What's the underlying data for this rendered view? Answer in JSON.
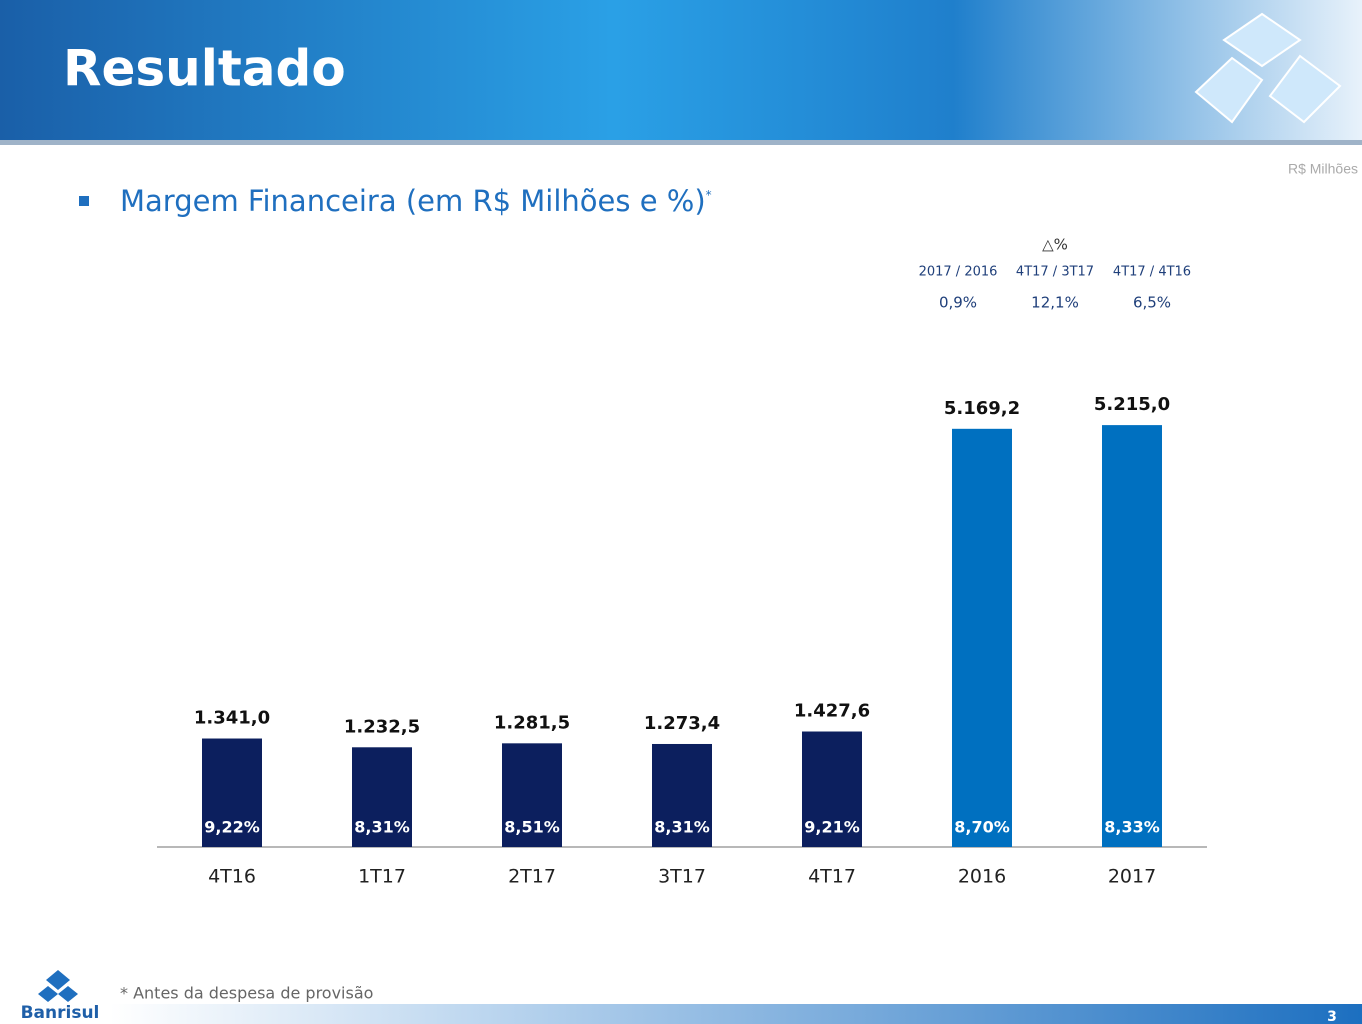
{
  "header": {
    "title": "Resultado",
    "unit": "R$ Milhões"
  },
  "chart_data": {
    "type": "bar",
    "title": "Margem Financeira (em R$ Milhões e %)",
    "title_marker": "*",
    "categories": [
      "4T16",
      "1T17",
      "2T17",
      "3T17",
      "4T17",
      "2016",
      "2017"
    ],
    "values": [
      1341.0,
      1232.5,
      1281.5,
      1273.4,
      1427.6,
      5169.2,
      5215.0
    ],
    "value_labels": [
      "1.341,0",
      "1.232,5",
      "1.281,5",
      "1.273,4",
      "1.427,6",
      "5.169,2",
      "5.215,0"
    ],
    "margin_labels": [
      "9,22%",
      "8,31%",
      "8,51%",
      "8,31%",
      "9,21%",
      "8,70%",
      "8,33%"
    ],
    "colors": [
      "#0c1f5e",
      "#0c1f5e",
      "#0c1f5e",
      "#0c1f5e",
      "#0c1f5e",
      "#0070c0",
      "#0070c0"
    ]
  },
  "variation": {
    "header": "△%",
    "columns": [
      "2017 / 2016",
      "4T17 / 3T17",
      "4T17 / 4T16"
    ],
    "values": [
      "0,9%",
      "12,1%",
      "6,5%"
    ]
  },
  "footnote": "* Antes da despesa de provisão",
  "logo": "Banrisul",
  "page": "3"
}
